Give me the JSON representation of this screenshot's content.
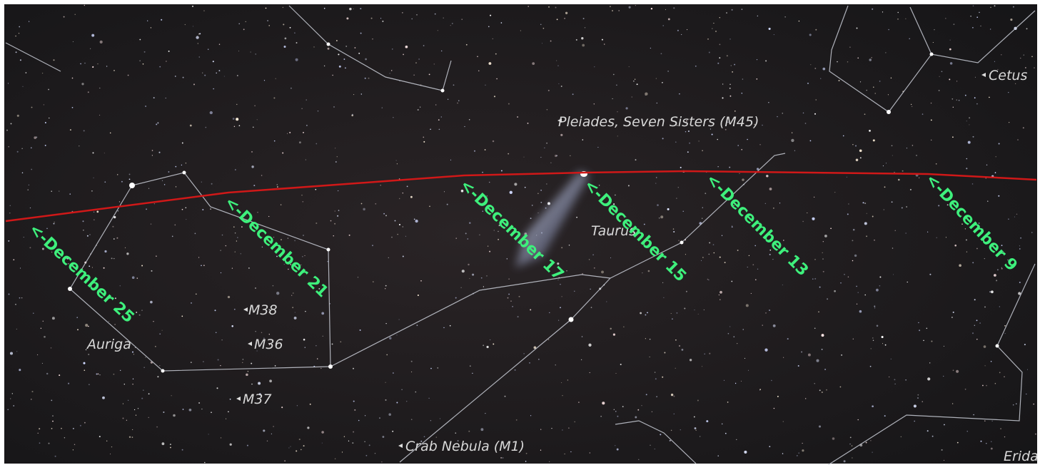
{
  "objects": {
    "pleiades": "Pleiades, Seven Sisters (M45)",
    "cetus": "Cetus",
    "taurus": "Taurus",
    "auriga": "Auriga",
    "m38": "M38",
    "m36": "M36",
    "m37": "M37",
    "crab": "Crab Nebula (M1)",
    "eridanus": "Erida"
  },
  "dates": [
    "<-December 25",
    "<-December 21",
    "<-December 17",
    "<-December 15",
    "<-December 13",
    "<-December 9"
  ]
}
